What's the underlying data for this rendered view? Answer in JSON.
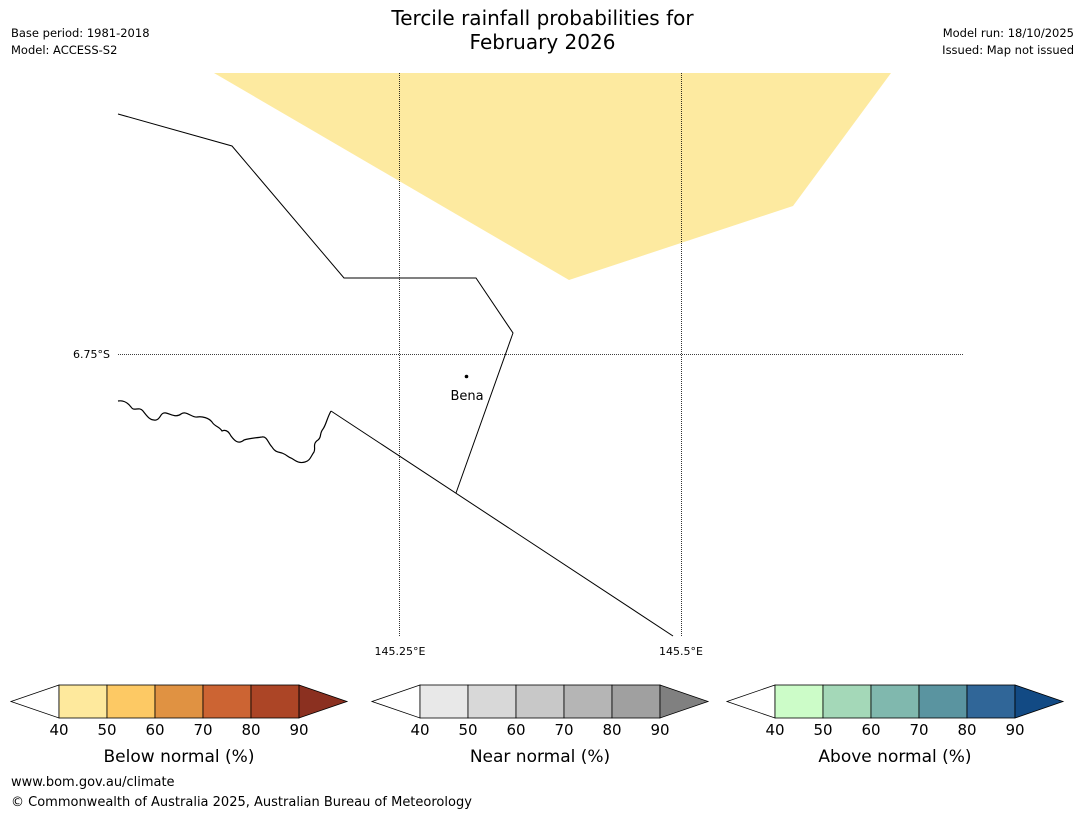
{
  "title_line1": "Tercile rainfall probabilities for",
  "title_line2": "February 2026",
  "meta_left": {
    "base_period": "Base period: 1981-2018",
    "model": "Model: ACCESS-S2"
  },
  "meta_right": {
    "model_run": "Model run: 18/10/2025",
    "issued": "Issued: Map not issued"
  },
  "map": {
    "lat_label": "6.75°S",
    "lon_labels": [
      "145.25°E",
      "145.5°E"
    ],
    "place": "Bena",
    "shading_color": "#fdeaa0"
  },
  "colorbars": [
    {
      "label": "Below normal (%)",
      "ticks": [
        "40",
        "50",
        "60",
        "70",
        "80",
        "90"
      ],
      "colors": [
        "#fee99d",
        "#fdc964",
        "#e09242",
        "#cc6433",
        "#ac4526",
        "#8b3020"
      ]
    },
    {
      "label": "Near normal (%)",
      "ticks": [
        "40",
        "50",
        "60",
        "70",
        "80",
        "90"
      ],
      "colors": [
        "#e8e8e8",
        "#d8d8d8",
        "#c8c8c8",
        "#b5b5b5",
        "#a0a0a0",
        "#808080"
      ]
    },
    {
      "label": "Above normal (%)",
      "ticks": [
        "40",
        "50",
        "60",
        "70",
        "80",
        "90"
      ],
      "colors": [
        "#ccfcc8",
        "#a4d8b8",
        "#80b8ae",
        "#5a94a0",
        "#306698",
        "#124a84"
      ]
    }
  ],
  "footer": {
    "url": "www.bom.gov.au/climate",
    "copyright": "© Commonwealth of Australia 2025, Australian Bureau of Meteorology"
  }
}
